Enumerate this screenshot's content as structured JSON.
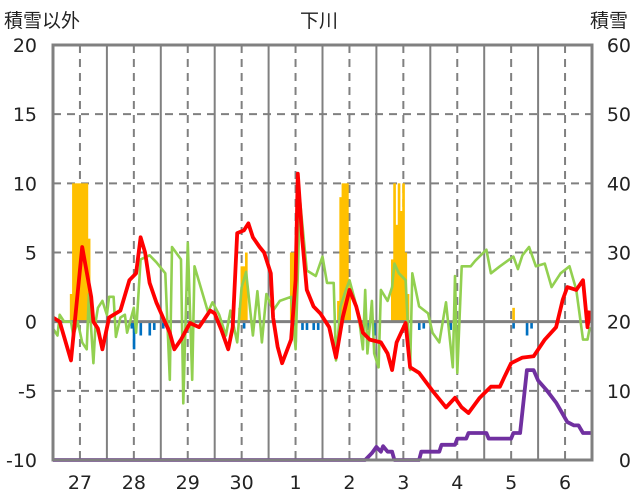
{
  "chart_data": {
    "type": "line",
    "title": "下川",
    "ylabel": "積雪以外",
    "y2label": "積雪",
    "ylim": [
      -10,
      20
    ],
    "y2lim": [
      0,
      60
    ],
    "yticks": [
      20,
      15,
      10,
      5,
      0,
      -5,
      -10
    ],
    "y2ticks": [
      60,
      50,
      40,
      30,
      20,
      10,
      0
    ],
    "xlim_hours": [
      0,
      240
    ],
    "xtick_labels": [
      "27",
      "28",
      "29",
      "30",
      "1",
      "2",
      "3",
      "4",
      "5",
      "6"
    ],
    "grid": true,
    "colors": {
      "temp": "#ff0000",
      "green": "#92d050",
      "snow": "#7030a0",
      "precip": "#ffc000",
      "neg": "#0070c0",
      "axis": "#808080"
    },
    "series": [
      {
        "name": "red-line",
        "axis": "left",
        "points": [
          [
            0,
            0.3
          ],
          [
            3,
            0
          ],
          [
            8,
            -2.8
          ],
          [
            13,
            5.4
          ],
          [
            17,
            1.8
          ],
          [
            18,
            0
          ],
          [
            20,
            -0.5
          ],
          [
            22,
            -2
          ],
          [
            25,
            0.3
          ],
          [
            30,
            0.8
          ],
          [
            34,
            3
          ],
          [
            37,
            3.5
          ],
          [
            39,
            6.1
          ],
          [
            41,
            5
          ],
          [
            43,
            2.8
          ],
          [
            46,
            1.4
          ],
          [
            49,
            0.3
          ],
          [
            52,
            -0.8
          ],
          [
            54,
            -2
          ],
          [
            57,
            -1.3
          ],
          [
            61,
            -0.1
          ],
          [
            65,
            -0.4
          ],
          [
            70,
            0.8
          ],
          [
            72,
            0.6
          ],
          [
            75,
            -0.6
          ],
          [
            78,
            -2
          ],
          [
            80,
            -0.4
          ],
          [
            82,
            6.4
          ],
          [
            85,
            6.6
          ],
          [
            87,
            7.1
          ],
          [
            89,
            6.1
          ],
          [
            92,
            5.4
          ],
          [
            94,
            5
          ],
          [
            97,
            3.5
          ],
          [
            98,
            0.3
          ],
          [
            100,
            -1.8
          ],
          [
            102,
            -3
          ],
          [
            106,
            -1.3
          ],
          [
            108,
            3
          ],
          [
            109,
            10.7
          ],
          [
            111,
            5.9
          ],
          [
            113,
            2.3
          ],
          [
            116,
            1.1
          ],
          [
            119,
            0.6
          ],
          [
            123,
            -0.4
          ],
          [
            126,
            -2.6
          ],
          [
            129,
            0.3
          ],
          [
            132,
            2.3
          ],
          [
            135,
            1.1
          ],
          [
            138,
            -0.8
          ],
          [
            141,
            -1.3
          ],
          [
            146,
            -1.5
          ],
          [
            149,
            -2.3
          ],
          [
            151,
            -3.5
          ],
          [
            153,
            -1.5
          ],
          [
            157,
            -0.1
          ],
          [
            159,
            -3.3
          ],
          [
            163,
            -3.7
          ],
          [
            169,
            -5
          ],
          [
            175,
            -6.2
          ],
          [
            179,
            -5.5
          ],
          [
            182,
            -6.2
          ],
          [
            185,
            -6.6
          ],
          [
            190,
            -5.5
          ],
          [
            195,
            -4.7
          ],
          [
            199,
            -4.7
          ],
          [
            201,
            -4
          ],
          [
            204,
            -3
          ],
          [
            209,
            -2.6
          ],
          [
            214,
            -2.5
          ],
          [
            219,
            -1.3
          ],
          [
            224,
            -0.4
          ],
          [
            227,
            1.6
          ],
          [
            229,
            2.5
          ],
          [
            233,
            2.3
          ],
          [
            236,
            3
          ],
          [
            238,
            -0.4
          ],
          [
            239,
            0.8
          ]
        ]
      },
      {
        "name": "green-line",
        "axis": "left",
        "points": [
          [
            0,
            -0.5
          ],
          [
            2,
            -1
          ],
          [
            3,
            0.5
          ],
          [
            5,
            0
          ],
          [
            8,
            0
          ],
          [
            9,
            -1
          ],
          [
            11,
            0
          ],
          [
            13,
            -1.5
          ],
          [
            15,
            -2
          ],
          [
            16,
            2
          ],
          [
            18,
            -3
          ],
          [
            19,
            0
          ],
          [
            20,
            1
          ],
          [
            22,
            1.5
          ],
          [
            24,
            0.5
          ],
          [
            25,
            1.8
          ],
          [
            27,
            1.8
          ],
          [
            28,
            -1.1
          ],
          [
            30,
            0.3
          ],
          [
            32,
            0.5
          ],
          [
            33,
            -0.8
          ],
          [
            36,
            1
          ],
          [
            37,
            -0.8
          ],
          [
            39,
            4.5
          ],
          [
            43,
            4.8
          ],
          [
            46,
            4.3
          ],
          [
            50,
            3.5
          ],
          [
            52,
            -4.2
          ],
          [
            53,
            5.4
          ],
          [
            57,
            4.5
          ],
          [
            58,
            -5.9
          ],
          [
            60,
            5.7
          ],
          [
            62,
            -4.2
          ],
          [
            63,
            4
          ],
          [
            67,
            1.8
          ],
          [
            69,
            0.7
          ],
          [
            71,
            1.4
          ],
          [
            74,
            0.5
          ],
          [
            77,
            -1
          ],
          [
            79,
            0.8
          ],
          [
            82,
            -1.5
          ],
          [
            84,
            2.5
          ],
          [
            86,
            3.6
          ],
          [
            89,
            -1
          ],
          [
            91,
            2.2
          ],
          [
            93,
            -1.5
          ],
          [
            95,
            2
          ],
          [
            98,
            0.8
          ],
          [
            101,
            1.5
          ],
          [
            106,
            1.8
          ],
          [
            108,
            -2
          ],
          [
            110,
            8.8
          ],
          [
            113,
            3.7
          ],
          [
            117,
            3.3
          ],
          [
            120,
            4.7
          ],
          [
            122,
            2.8
          ],
          [
            125,
            2.8
          ],
          [
            126,
            -2.8
          ],
          [
            128,
            1.1
          ],
          [
            130,
            2.1
          ],
          [
            132,
            3
          ],
          [
            136,
            0.6
          ],
          [
            138,
            -2
          ],
          [
            139,
            2.3
          ],
          [
            140,
            -2.3
          ],
          [
            142,
            1.5
          ],
          [
            143,
            -2.3
          ],
          [
            145,
            -3.3
          ],
          [
            146,
            2.3
          ],
          [
            149,
            1.5
          ],
          [
            151,
            2.5
          ],
          [
            152,
            4.2
          ],
          [
            154,
            3.5
          ],
          [
            157,
            3
          ],
          [
            159,
            -3.5
          ],
          [
            160,
            3.5
          ],
          [
            163,
            1.1
          ],
          [
            167,
            0.6
          ],
          [
            169,
            -0.8
          ],
          [
            172,
            -1.5
          ],
          [
            175,
            1.4
          ],
          [
            178,
            -3.3
          ],
          [
            179,
            3.3
          ],
          [
            180,
            -3.7
          ],
          [
            182,
            4
          ],
          [
            186,
            4
          ],
          [
            188,
            4.4
          ],
          [
            193,
            5.2
          ],
          [
            195,
            3.5
          ],
          [
            199,
            4
          ],
          [
            205,
            4.7
          ],
          [
            207,
            3.8
          ],
          [
            209,
            4.8
          ],
          [
            212,
            5.4
          ],
          [
            215,
            4
          ],
          [
            219,
            4.2
          ],
          [
            222,
            2.5
          ],
          [
            226,
            3.5
          ],
          [
            230,
            4
          ],
          [
            233,
            2.3
          ],
          [
            236,
            -1.3
          ],
          [
            238,
            -1.3
          ],
          [
            239,
            -0.4
          ]
        ]
      },
      {
        "name": "snow-depth-line",
        "axis": "right",
        "points": [
          [
            0,
            0
          ],
          [
            139,
            0
          ],
          [
            142,
            1
          ],
          [
            144,
            1.9
          ],
          [
            146,
            1.2
          ],
          [
            147,
            2
          ],
          [
            149,
            1.2
          ],
          [
            151,
            1.2
          ],
          [
            152,
            0
          ],
          [
            163,
            0
          ],
          [
            164,
            1.2
          ],
          [
            172,
            1.2
          ],
          [
            173,
            2.2
          ],
          [
            179,
            2.2
          ],
          [
            180,
            3.1
          ],
          [
            184,
            3.1
          ],
          [
            185,
            3.9
          ],
          [
            193,
            3.9
          ],
          [
            194,
            3.1
          ],
          [
            204,
            3.1
          ],
          [
            205,
            3.9
          ],
          [
            208,
            3.9
          ],
          [
            211,
            13
          ],
          [
            214,
            13
          ],
          [
            216,
            11.5
          ],
          [
            220,
            10
          ],
          [
            224,
            8.3
          ],
          [
            229,
            5.5
          ],
          [
            232,
            5
          ],
          [
            234,
            5
          ],
          [
            236,
            3.9
          ],
          [
            240,
            3.9
          ]
        ]
      }
    ],
    "bars_positive": [
      [
        8,
        2
      ],
      [
        9,
        10
      ],
      [
        10,
        10
      ],
      [
        11,
        10
      ],
      [
        12,
        10
      ],
      [
        13,
        10
      ],
      [
        14,
        10
      ],
      [
        15,
        10
      ],
      [
        16,
        6
      ],
      [
        83,
        1
      ],
      [
        84,
        4
      ],
      [
        85,
        4
      ],
      [
        86,
        5
      ],
      [
        106,
        5
      ],
      [
        107,
        5
      ],
      [
        108,
        2
      ],
      [
        127,
        1.5
      ],
      [
        128,
        9
      ],
      [
        129,
        10
      ],
      [
        130,
        10
      ],
      [
        131,
        10
      ],
      [
        132,
        3
      ],
      [
        151,
        4.5
      ],
      [
        152,
        10
      ],
      [
        153,
        7
      ],
      [
        154,
        10
      ],
      [
        155,
        8
      ],
      [
        156,
        10
      ],
      [
        157,
        5
      ],
      [
        158,
        2
      ],
      [
        205,
        1
      ]
    ],
    "bars_negative": [
      [
        35,
        -0.5
      ],
      [
        36,
        -2
      ],
      [
        39,
        -1
      ],
      [
        43,
        -1
      ],
      [
        45,
        -0.6
      ],
      [
        49,
        -0.5
      ],
      [
        85,
        -0.5
      ],
      [
        108,
        -1.5
      ],
      [
        111,
        -0.6
      ],
      [
        113,
        -0.6
      ],
      [
        116,
        -0.6
      ],
      [
        118,
        -0.6
      ],
      [
        140,
        -0.6
      ],
      [
        143,
        -1
      ],
      [
        163,
        -0.6
      ],
      [
        165,
        -0.5
      ],
      [
        177,
        -0.6
      ],
      [
        205,
        -0.5
      ],
      [
        211,
        -1
      ],
      [
        213,
        -0.5
      ]
    ]
  }
}
